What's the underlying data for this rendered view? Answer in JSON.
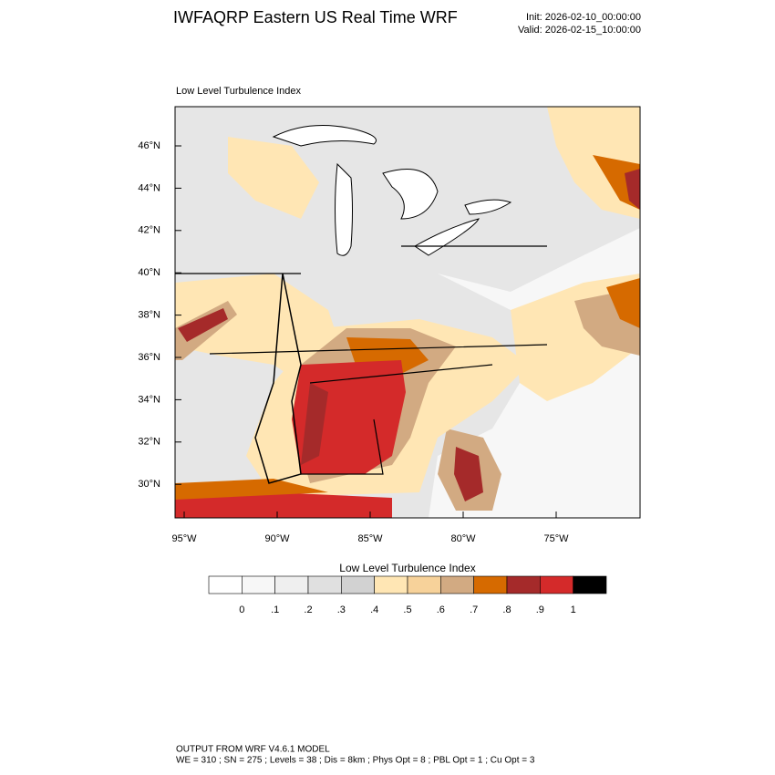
{
  "header": {
    "title": "IWFAQRP Eastern US Real Time WRF",
    "init": "Init: 2026-02-10_00:00:00",
    "valid": "Valid: 2026-02-15_10:00:00"
  },
  "map": {
    "label": "Low Level Turbulence Index",
    "lat_labels": [
      "46°N",
      "44°N",
      "42°N",
      "40°N",
      "38°N",
      "36°N",
      "34°N",
      "32°N",
      "30°N"
    ],
    "lon_labels": [
      "95°W",
      "90°W",
      "85°W",
      "80°W",
      "75°W"
    ]
  },
  "colorbar": {
    "title": "Low Level Turbulence Index",
    "colors": [
      "#ffffff",
      "#f7f7f7",
      "#efefef",
      "#e0e0e0",
      "#d2d2d2",
      "#ffe6b4",
      "#f7d29a",
      "#d2aa82",
      "#d66a00",
      "#a52a2a",
      "#d42a2a",
      "#000000"
    ],
    "labels": [
      "0",
      ".1",
      ".2",
      ".3",
      ".4",
      ".5",
      ".6",
      ".7",
      ".8",
      ".9",
      "1"
    ]
  },
  "footer": {
    "line1": "OUTPUT FROM WRF V4.6.1 MODEL",
    "line2": "WE = 310 ; SN = 275 ; Levels = 38 ; Dis = 8km ; Phys Opt = 8 ; PBL Opt = 1 ; Cu Opt = 3"
  }
}
